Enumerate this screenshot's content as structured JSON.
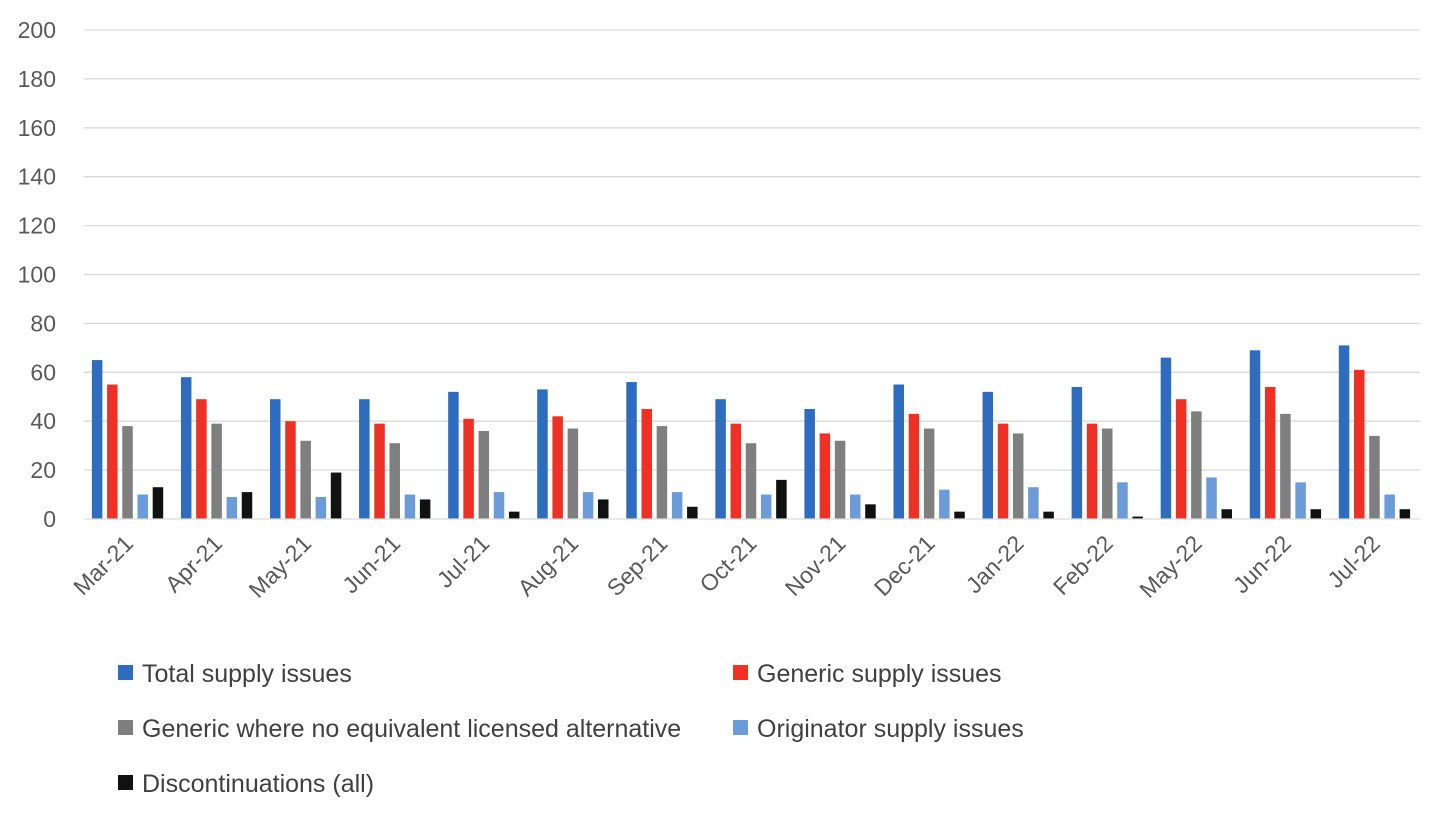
{
  "chart_data": {
    "type": "bar",
    "title": "",
    "xlabel": "",
    "ylabel": "",
    "ylim": [
      0,
      200
    ],
    "yticks": [
      0,
      20,
      40,
      60,
      80,
      100,
      120,
      140,
      160,
      180,
      200
    ],
    "grid": true,
    "legend_position": "bottom",
    "categories": [
      "Mar-21",
      "Apr-21",
      "May-21",
      "Jun-21",
      "Jul-21",
      "Aug-21",
      "Sep-21",
      "Oct-21",
      "Nov-21",
      "Dec-21",
      "Jan-22",
      "Feb-22",
      "May-22",
      "Jun-22",
      "Jul-22"
    ],
    "series": [
      {
        "name": "Total supply issues",
        "color": "#2E6CC0",
        "values": [
          65,
          58,
          49,
          49,
          52,
          53,
          56,
          49,
          45,
          55,
          52,
          54,
          66,
          69,
          71
        ]
      },
      {
        "name": "Generic supply issues",
        "color": "#EE3124",
        "values": [
          55,
          49,
          40,
          39,
          41,
          42,
          45,
          39,
          35,
          43,
          39,
          39,
          49,
          54,
          61
        ]
      },
      {
        "name": "Generic where no equivalent licensed alternative",
        "color": "#7F7F7F",
        "values": [
          38,
          39,
          32,
          31,
          36,
          37,
          38,
          31,
          32,
          37,
          35,
          37,
          44,
          43,
          34
        ]
      },
      {
        "name": "Originator supply issues",
        "color": "#6B9BD8",
        "values": [
          10,
          9,
          9,
          10,
          11,
          11,
          11,
          10,
          10,
          12,
          13,
          15,
          17,
          15,
          10
        ]
      },
      {
        "name": "Discontinuations (all)",
        "color": "#111111",
        "values": [
          13,
          11,
          19,
          8,
          3,
          8,
          5,
          16,
          6,
          3,
          3,
          1,
          4,
          4,
          4
        ]
      }
    ]
  }
}
